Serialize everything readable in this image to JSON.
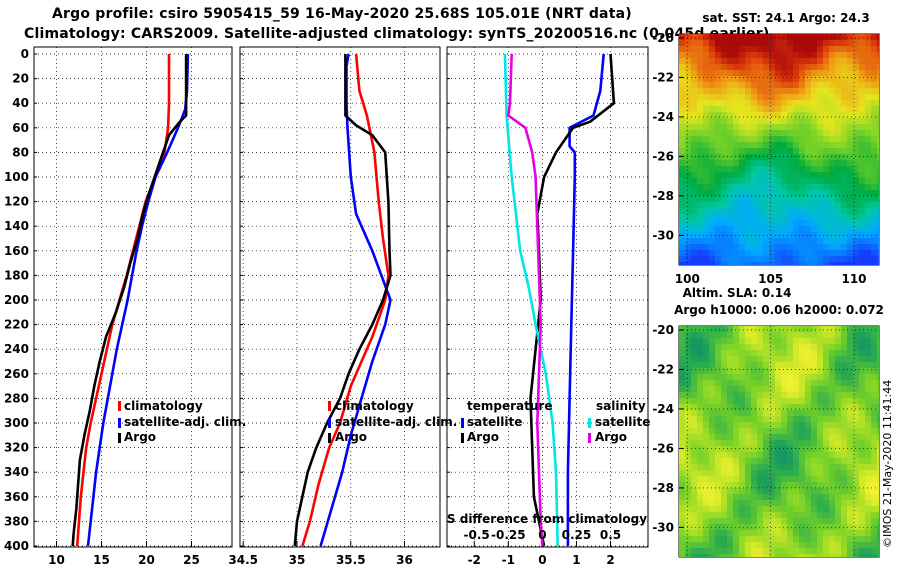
{
  "title_line1": "Argo profile: csiro 5905415_59 16-May-2020 25.68S 105.01E (NRT data)",
  "title_line2": "Climatology: CARS2009. Satellite-adjusted climatology: synTS_20200516.nc (0.045d earlier)",
  "credit": "©IMOS 21-May-2020 11:41:44",
  "colors": {
    "climatology": "#ff0000",
    "satellite": "#0000ff",
    "argo": "#000000",
    "sat_salinity": "#00e5e5",
    "argo_salinity": "#e600e6"
  },
  "chart_data": [
    {
      "type": "line",
      "name": "temperature",
      "ylabel": "",
      "ylim": [
        0,
        400
      ],
      "xlim": [
        7.5,
        29.5
      ],
      "yticks": [
        "0",
        "20",
        "40",
        "60",
        "80",
        "100",
        "120",
        "140",
        "160",
        "180",
        "200",
        "220",
        "240",
        "260",
        "280",
        "300",
        "320",
        "340",
        "360",
        "380",
        "400"
      ],
      "xticks": [
        10,
        15,
        20,
        25
      ],
      "legend": [
        "climatology",
        "satellite-adj. clim.",
        "Argo"
      ],
      "series": [
        {
          "name": "climatology",
          "color": "#ff0000",
          "points": [
            [
              22.5,
              0
            ],
            [
              22.5,
              40
            ],
            [
              22.4,
              60
            ],
            [
              22.0,
              80
            ],
            [
              21.0,
              100
            ],
            [
              19.9,
              120
            ],
            [
              19.2,
              140
            ],
            [
              18.5,
              160
            ],
            [
              17.8,
              180
            ],
            [
              17.0,
              200
            ],
            [
              16.2,
              220
            ],
            [
              15.6,
              240
            ],
            [
              15.0,
              260
            ],
            [
              14.4,
              280
            ],
            [
              13.8,
              300
            ],
            [
              13.3,
              320
            ],
            [
              13.0,
              340
            ],
            [
              12.7,
              360
            ],
            [
              12.5,
              380
            ],
            [
              12.3,
              400
            ]
          ]
        },
        {
          "name": "satellite-adj. clim.",
          "color": "#0000ff",
          "points": [
            [
              24.6,
              0
            ],
            [
              24.5,
              30
            ],
            [
              24.3,
              45
            ],
            [
              23.5,
              60
            ],
            [
              22.3,
              80
            ],
            [
              21.0,
              100
            ],
            [
              20.2,
              120
            ],
            [
              19.5,
              140
            ],
            [
              18.9,
              160
            ],
            [
              18.4,
              180
            ],
            [
              17.9,
              200
            ],
            [
              17.3,
              220
            ],
            [
              16.7,
              240
            ],
            [
              16.2,
              260
            ],
            [
              15.7,
              280
            ],
            [
              15.2,
              300
            ],
            [
              14.8,
              320
            ],
            [
              14.4,
              340
            ],
            [
              14.1,
              360
            ],
            [
              13.8,
              380
            ],
            [
              13.5,
              400
            ]
          ]
        },
        {
          "name": "Argo",
          "color": "#000000",
          "points": [
            [
              24.4,
              0
            ],
            [
              24.4,
              50
            ],
            [
              23.6,
              56
            ],
            [
              22.5,
              66
            ],
            [
              21.6,
              85
            ],
            [
              20.9,
              100
            ],
            [
              20.2,
              115
            ],
            [
              19.6,
              130
            ],
            [
              19.0,
              150
            ],
            [
              18.2,
              170
            ],
            [
              17.5,
              190
            ],
            [
              16.6,
              210
            ],
            [
              15.5,
              230
            ],
            [
              14.8,
              250
            ],
            [
              14.2,
              270
            ],
            [
              13.7,
              290
            ],
            [
              13.1,
              310
            ],
            [
              12.6,
              330
            ],
            [
              12.4,
              350
            ],
            [
              12.2,
              370
            ],
            [
              11.9,
              390
            ],
            [
              11.8,
              400
            ]
          ]
        }
      ]
    },
    {
      "type": "line",
      "name": "salinity",
      "ylim": [
        0,
        400
      ],
      "xlim": [
        34.47,
        36.33
      ],
      "xticks": [
        "34.5",
        "35",
        "35.5",
        "36"
      ],
      "legend": [
        "climatology",
        "satellite-adj. clim.",
        "Argo"
      ],
      "series": [
        {
          "name": "climatology",
          "color": "#ff0000",
          "points": [
            [
              35.55,
              0
            ],
            [
              35.58,
              30
            ],
            [
              35.65,
              50
            ],
            [
              35.72,
              80
            ],
            [
              35.76,
              120
            ],
            [
              35.8,
              150
            ],
            [
              35.85,
              180
            ],
            [
              35.82,
              200
            ],
            [
              35.7,
              230
            ],
            [
              35.6,
              250
            ],
            [
              35.5,
              270
            ],
            [
              35.4,
              300
            ],
            [
              35.3,
              320
            ],
            [
              35.2,
              350
            ],
            [
              35.12,
              380
            ],
            [
              35.05,
              400
            ]
          ]
        },
        {
          "name": "satellite-adj. clim.",
          "color": "#0000ff",
          "points": [
            [
              35.48,
              0
            ],
            [
              35.46,
              10
            ],
            [
              35.46,
              40
            ],
            [
              35.47,
              60
            ],
            [
              35.5,
              100
            ],
            [
              35.55,
              130
            ],
            [
              35.7,
              160
            ],
            [
              35.87,
              200
            ],
            [
              35.82,
              220
            ],
            [
              35.7,
              250
            ],
            [
              35.6,
              280
            ],
            [
              35.5,
              310
            ],
            [
              35.42,
              340
            ],
            [
              35.32,
              370
            ],
            [
              35.22,
              400
            ]
          ]
        },
        {
          "name": "Argo",
          "color": "#000000",
          "points": [
            [
              35.45,
              0
            ],
            [
              35.45,
              50
            ],
            [
              35.55,
              58
            ],
            [
              35.7,
              66
            ],
            [
              35.82,
              80
            ],
            [
              35.85,
              120
            ],
            [
              35.86,
              160
            ],
            [
              35.87,
              180
            ],
            [
              35.8,
              200
            ],
            [
              35.7,
              220
            ],
            [
              35.58,
              240
            ],
            [
              35.48,
              260
            ],
            [
              35.4,
              280
            ],
            [
              35.28,
              300
            ],
            [
              35.18,
              320
            ],
            [
              35.1,
              340
            ],
            [
              35.0,
              380
            ],
            [
              34.98,
              400
            ]
          ]
        }
      ]
    },
    {
      "type": "line",
      "name": "difference from climatology",
      "ylim": [
        0,
        400
      ],
      "xlim": [
        -2.8,
        3.1
      ],
      "xticks": [
        "-2",
        "-1",
        "0",
        "1",
        "2"
      ],
      "top_axis_label": "S difference from climatology",
      "top_ticks": [
        "-0.5",
        "-0.25",
        "0",
        "0.25",
        "0.5"
      ],
      "legend_left_title": "temperature",
      "legend_right_title": "salinity",
      "legend_left": [
        "satellite",
        "Argo"
      ],
      "legend_right": [
        "satellite",
        "Argo"
      ],
      "series": [
        {
          "name": "temperature satellite",
          "color": "#0000ff",
          "points": [
            [
              1.8,
              0
            ],
            [
              1.7,
              30
            ],
            [
              1.5,
              50
            ],
            [
              0.8,
              60
            ],
            [
              0.8,
              75
            ],
            [
              0.95,
              80
            ],
            [
              0.95,
              100
            ],
            [
              0.9,
              160
            ],
            [
              0.85,
              220
            ],
            [
              0.8,
              280
            ],
            [
              0.75,
              340
            ],
            [
              0.75,
              400
            ]
          ]
        },
        {
          "name": "temperature Argo",
          "color": "#000000",
          "points": [
            [
              2.0,
              0
            ],
            [
              2.1,
              40
            ],
            [
              1.4,
              55
            ],
            [
              0.9,
              60
            ],
            [
              0.4,
              80
            ],
            [
              0.05,
              100
            ],
            [
              -0.15,
              130
            ],
            [
              -0.1,
              160
            ],
            [
              -0.05,
              200
            ],
            [
              -0.2,
              240
            ],
            [
              -0.35,
              280
            ],
            [
              -0.3,
              320
            ],
            [
              -0.25,
              360
            ],
            [
              0.05,
              400
            ]
          ]
        },
        {
          "name": "salinity satellite",
          "color": "#00e5e5",
          "points": [
            [
              -1.1,
              0
            ],
            [
              -1.05,
              50
            ],
            [
              -0.9,
              100
            ],
            [
              -0.65,
              160
            ],
            [
              -0.4,
              190
            ],
            [
              -0.2,
              220
            ],
            [
              0.1,
              260
            ],
            [
              0.3,
              300
            ],
            [
              0.4,
              340
            ],
            [
              0.45,
              400
            ]
          ]
        },
        {
          "name": "salinity Argo",
          "color": "#e600e6",
          "points": [
            [
              -0.9,
              0
            ],
            [
              -0.95,
              40
            ],
            [
              -1.0,
              50
            ],
            [
              -0.5,
              60
            ],
            [
              -0.3,
              80
            ],
            [
              -0.2,
              100
            ],
            [
              -0.15,
              140
            ],
            [
              -0.1,
              180
            ],
            [
              -0.05,
              220
            ],
            [
              -0.1,
              260
            ],
            [
              -0.15,
              300
            ],
            [
              -0.1,
              340
            ],
            [
              -0.05,
              380
            ],
            [
              0.0,
              400
            ]
          ]
        }
      ]
    },
    {
      "type": "heatmap",
      "name": "satellite SST map",
      "title": "sat. SST: 24.1 Argo: 24.3",
      "xlim": [
        99.5,
        111.5
      ],
      "ylim": [
        -31.5,
        -19.8
      ],
      "xticks": [
        "100",
        "105",
        "110"
      ],
      "yticks": [
        "-20",
        "-22",
        "-24",
        "-26",
        "-28",
        "-30"
      ]
    },
    {
      "type": "heatmap",
      "name": "altimetry SLA map",
      "title_line1": "Altim. SLA: 0.14",
      "title_line2": "Argo h1000: 0.06 h2000: 0.072",
      "xlim": [
        99.5,
        111.5
      ],
      "ylim": [
        -31.5,
        -19.8
      ],
      "yticks": [
        "-20",
        "-22",
        "-24",
        "-26",
        "-28",
        "-30"
      ]
    }
  ]
}
